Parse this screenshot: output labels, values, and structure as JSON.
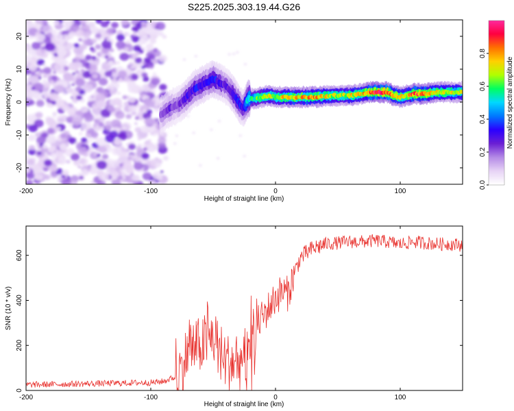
{
  "title": "S225.2025.303.19.44.G26",
  "colors": {
    "snr_line": "#e8302c",
    "frame": "#000000",
    "colormap": [
      "#ffffff",
      "#e6d2f5",
      "#b48ae6",
      "#6a1fd4",
      "#2a00ff",
      "#0078ff",
      "#00d8ff",
      "#00ff60",
      "#b0ff00",
      "#ffd000",
      "#ff7000",
      "#ff0040",
      "#ff2aa0"
    ]
  },
  "chart_data": [
    {
      "type": "heatmap",
      "xlabel": "Height of straight line (km)",
      "ylabel": "Frequency (Hz)",
      "xlim": [
        -200,
        150
      ],
      "ylim": [
        -25,
        25
      ],
      "x_ticks": [
        -200,
        -100,
        0,
        100
      ],
      "y_ticks": [
        -20,
        -10,
        0,
        10,
        20
      ],
      "colorbar": {
        "label": "Normalized spectral amplitude",
        "range": [
          0,
          1
        ],
        "ticks": [
          0.0,
          0.2,
          0.4,
          0.6,
          0.8
        ],
        "tick_labels": [
          "0.0",
          "0.2",
          "0.4",
          "0.6",
          "0.8"
        ]
      },
      "noise_region_x": [
        -200,
        -90
      ],
      "ridge": {
        "x": [
          -92,
          -85,
          -80,
          -75,
          -70,
          -65,
          -60,
          -55,
          -50,
          -45,
          -40,
          -35,
          -30,
          -26,
          -22,
          -18,
          -12,
          -5,
          0,
          10,
          20,
          30,
          40,
          50,
          60,
          70,
          75,
          80,
          85,
          90,
          95,
          100,
          105,
          110,
          120,
          130,
          140,
          150
        ],
        "y": [
          -4,
          -2,
          -1,
          0,
          2,
          4,
          5,
          6,
          7,
          6,
          5,
          3,
          0,
          -2,
          1,
          1,
          1.5,
          2,
          1.5,
          1.5,
          1.5,
          1.5,
          1.8,
          2,
          2,
          2.5,
          3,
          3,
          3,
          3,
          2,
          1.5,
          2,
          2.5,
          2.5,
          3,
          3,
          3
        ],
        "amplitude": [
          0.2,
          0.25,
          0.2,
          0.25,
          0.3,
          0.3,
          0.35,
          0.3,
          0.35,
          0.3,
          0.25,
          0.3,
          0.35,
          0.3,
          0.55,
          0.6,
          0.65,
          0.7,
          0.65,
          0.75,
          0.75,
          0.8,
          0.7,
          0.65,
          0.7,
          0.75,
          0.85,
          0.9,
          0.85,
          0.9,
          0.8,
          0.75,
          0.7,
          0.85,
          0.8,
          0.7,
          0.7,
          0.65
        ]
      }
    },
    {
      "type": "line",
      "xlabel": "Height of straight line (km)",
      "ylabel": "SNR (10 * v/v)",
      "xlim": [
        -200,
        150
      ],
      "ylim": [
        0,
        730
      ],
      "x_ticks": [
        -200,
        -100,
        0,
        100
      ],
      "y_ticks": [
        0,
        200,
        400,
        600
      ],
      "series": [
        {
          "name": "SNR",
          "x": [
            -200,
            -150,
            -100,
            -90,
            -80,
            -75,
            -70,
            -60,
            -50,
            -45,
            -40,
            -30,
            -25,
            -20,
            -15,
            -10,
            -5,
            0,
            5,
            10,
            15,
            20,
            30,
            40,
            50,
            60,
            70,
            80,
            90,
            100,
            110,
            120,
            130,
            140,
            150
          ],
          "y": [
            25,
            30,
            35,
            40,
            60,
            100,
            180,
            200,
            240,
            180,
            130,
            120,
            150,
            210,
            290,
            330,
            370,
            410,
            440,
            430,
            520,
            590,
            630,
            650,
            655,
            660,
            660,
            665,
            660,
            650,
            660,
            655,
            650,
            650,
            645
          ]
        }
      ]
    }
  ]
}
